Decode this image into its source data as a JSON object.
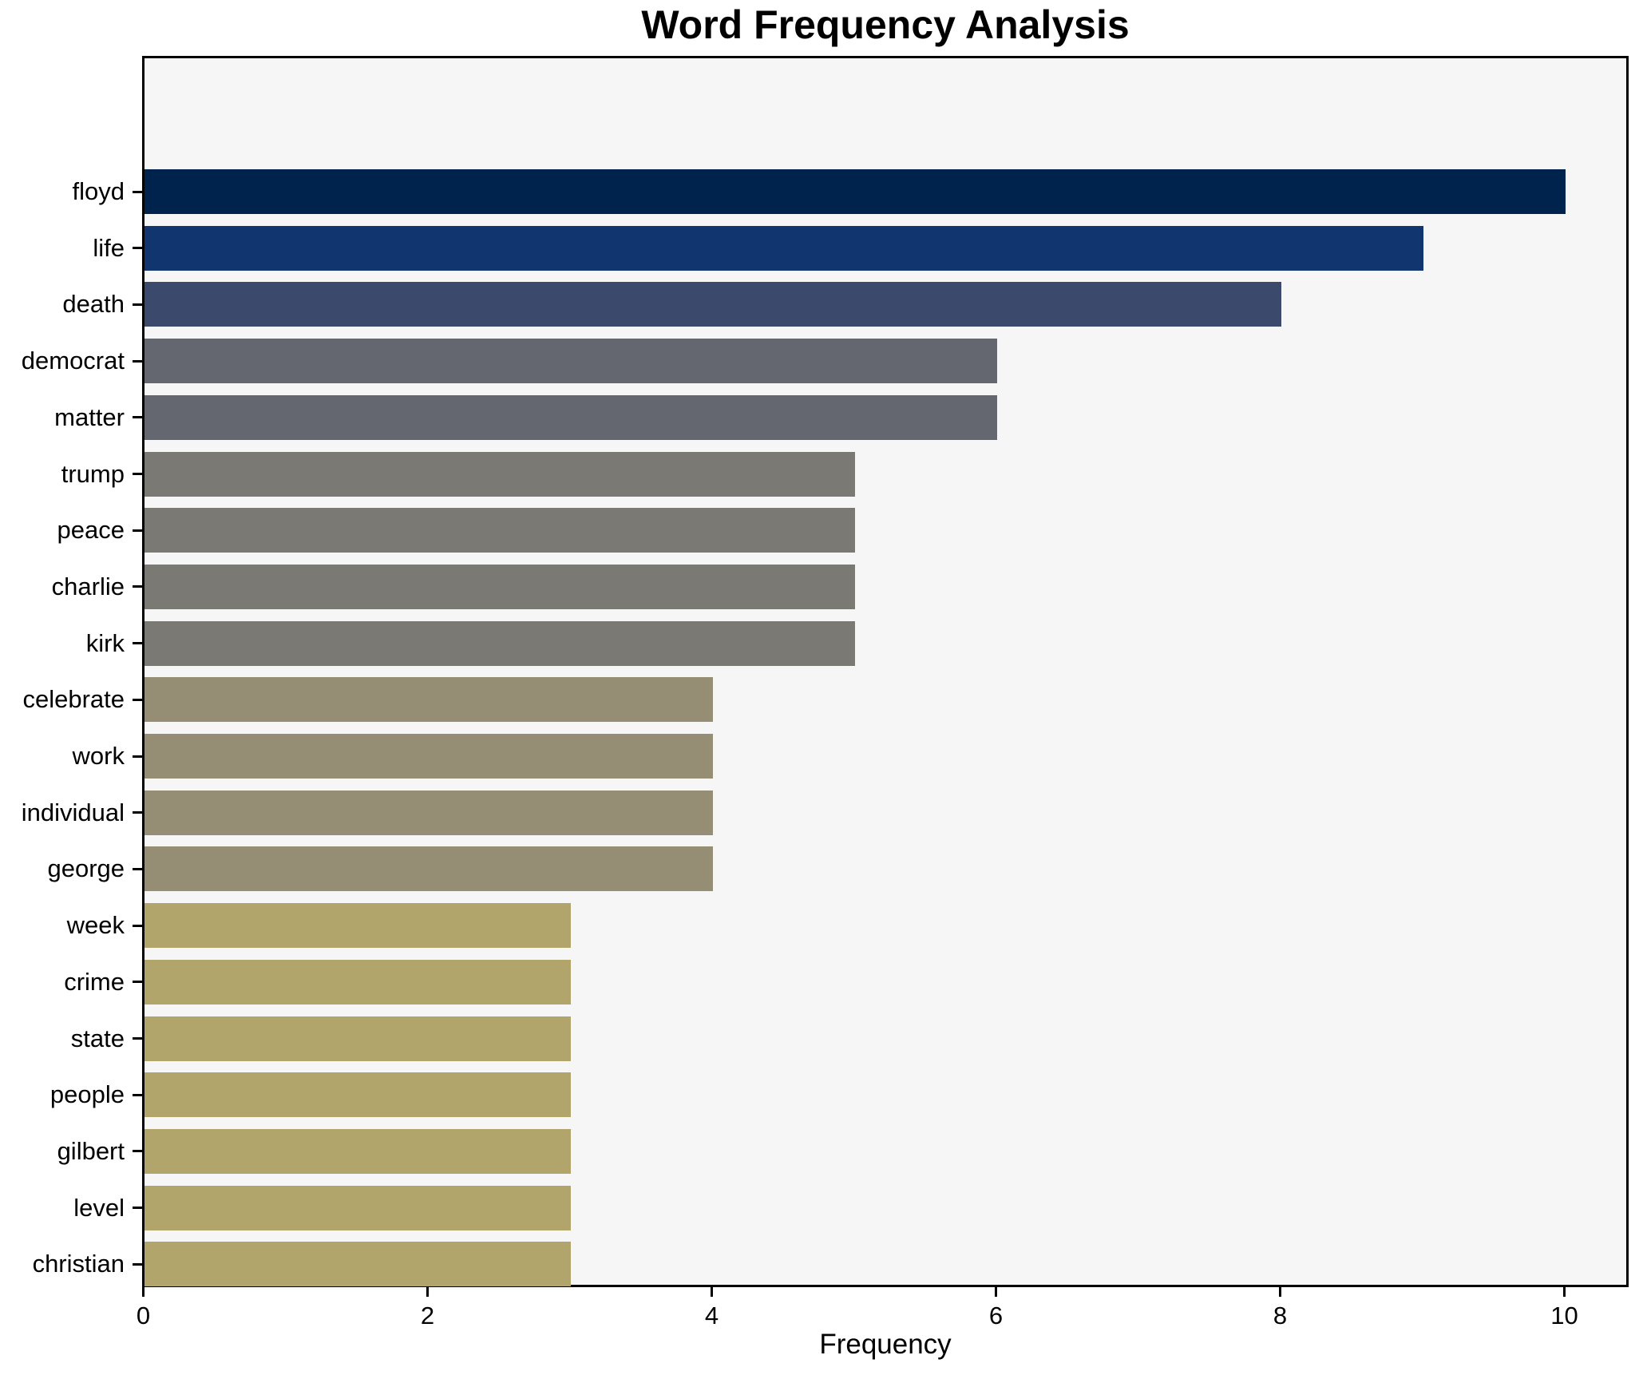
{
  "chart_data": {
    "type": "bar",
    "orientation": "horizontal",
    "title": "Word Frequency Analysis",
    "xlabel": "Frequency",
    "ylabel": "",
    "categories": [
      "floyd",
      "life",
      "death",
      "democrat",
      "matter",
      "trump",
      "peace",
      "charlie",
      "kirk",
      "celebrate",
      "work",
      "individual",
      "george",
      "week",
      "crime",
      "state",
      "people",
      "gilbert",
      "level",
      "christian"
    ],
    "values": [
      10,
      9,
      8,
      6,
      6,
      5,
      5,
      5,
      5,
      4,
      4,
      4,
      4,
      3,
      3,
      3,
      3,
      3,
      3,
      3
    ],
    "bar_colors": [
      "#00234d",
      "#10356f",
      "#3b496c",
      "#64676f",
      "#64676f",
      "#7a7973",
      "#7a7973",
      "#7a7973",
      "#7a7973",
      "#958e74",
      "#958e74",
      "#958e74",
      "#958e74",
      "#b2a56b",
      "#b2a56b",
      "#b2a56b",
      "#b2a56b",
      "#b2a56b",
      "#b2a56b",
      "#b2a56b"
    ],
    "x_ticks": [
      0,
      2,
      4,
      6,
      8,
      10
    ],
    "xlim": [
      0,
      10.46
    ],
    "grid": false,
    "legend": "none",
    "plot_background": "#f6f6f6",
    "figure_background": "#ffffff",
    "spine_color": "#000000"
  }
}
